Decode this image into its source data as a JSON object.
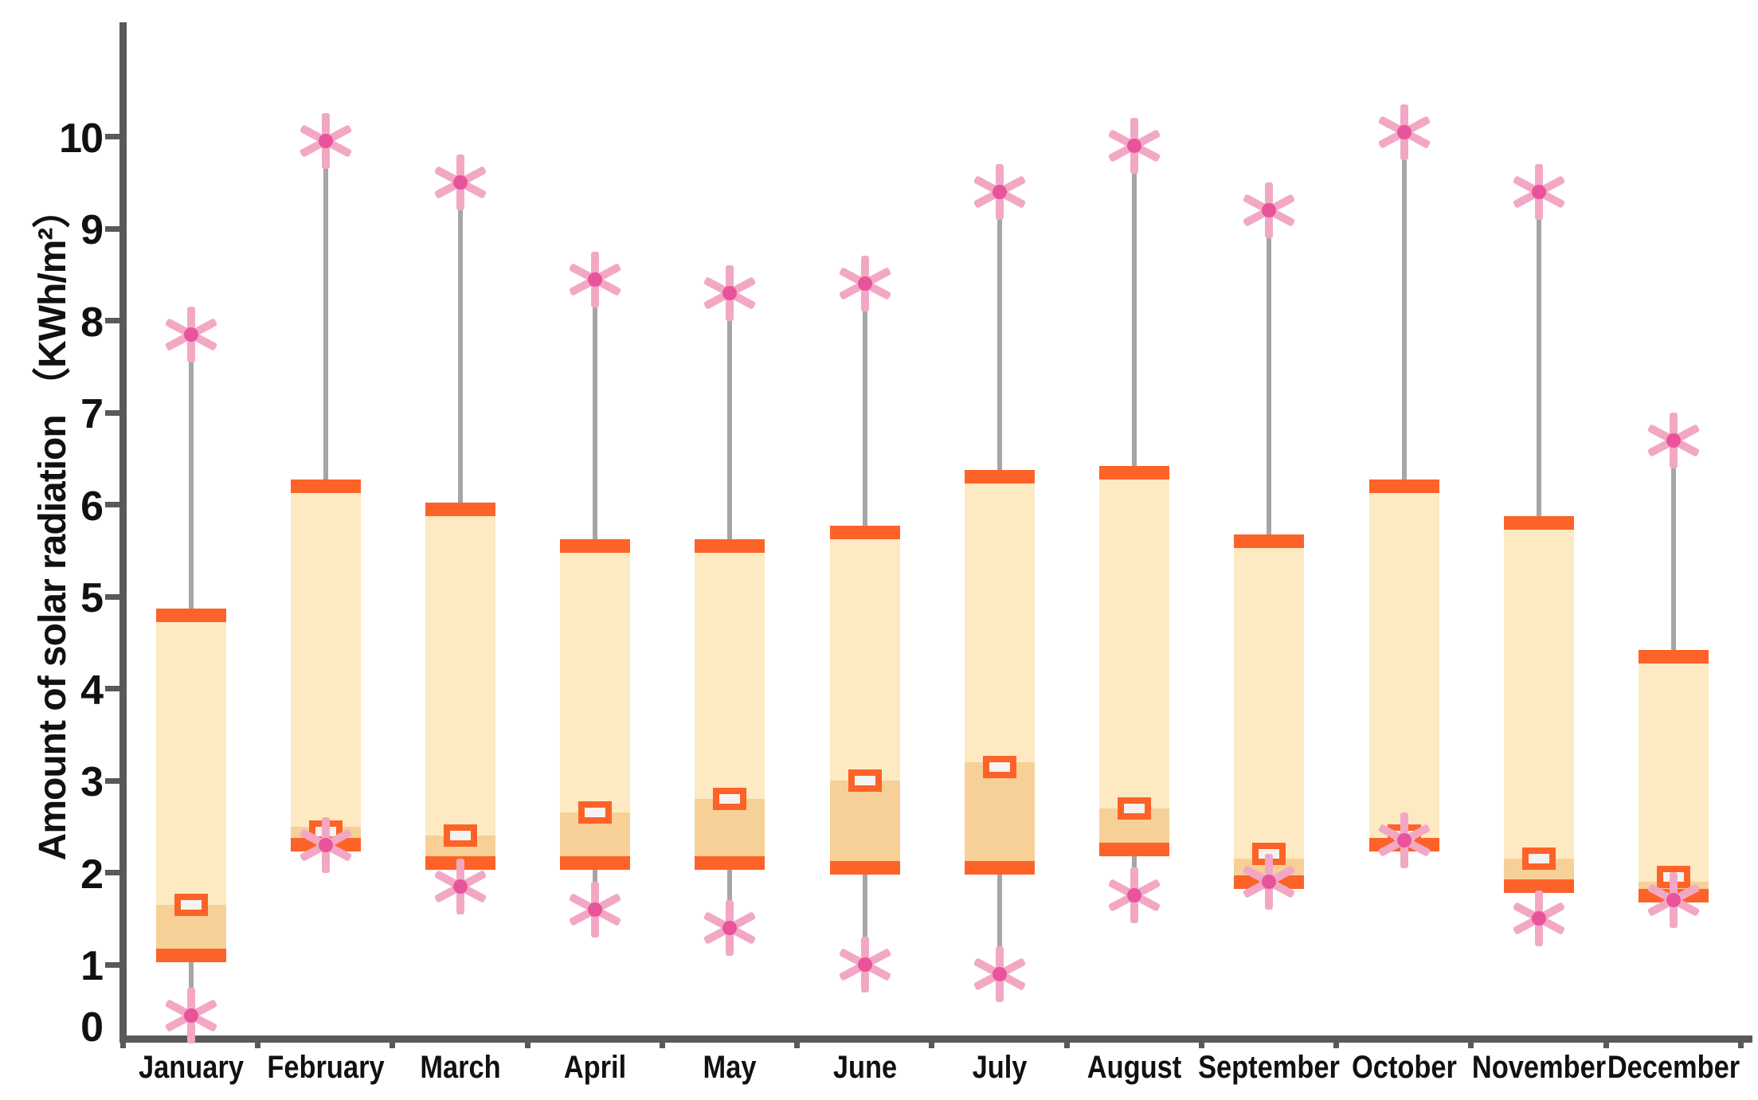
{
  "chart_data": {
    "type": "boxplot",
    "title": "",
    "xlabel": "",
    "ylabel": "Amount of solar radiation （KWh/m²）",
    "ylim": [
      0,
      11.3
    ],
    "yticks": [
      0,
      1,
      2,
      3,
      4,
      5,
      6,
      7,
      8,
      9,
      10
    ],
    "grid": false,
    "legend": "none",
    "categories": [
      "January",
      "February",
      "March",
      "April",
      "May",
      "June",
      "July",
      "August",
      "September",
      "October",
      "November",
      "December"
    ],
    "months": [
      {
        "label": "January",
        "min": 0.45,
        "q1": 1.1,
        "median": 1.65,
        "mean": 1.65,
        "q3": 4.8,
        "max": 7.85
      },
      {
        "label": "February",
        "min": 2.3,
        "q1": 2.3,
        "median": 2.5,
        "mean": 2.45,
        "q3": 6.2,
        "max": 9.95
      },
      {
        "label": "March",
        "min": 1.85,
        "q1": 2.1,
        "median": 2.4,
        "mean": 2.4,
        "q3": 5.95,
        "max": 9.5
      },
      {
        "label": "April",
        "min": 1.6,
        "q1": 2.1,
        "median": 2.65,
        "mean": 2.65,
        "q3": 5.55,
        "max": 8.45
      },
      {
        "label": "May",
        "min": 1.4,
        "q1": 2.1,
        "median": 2.8,
        "mean": 2.8,
        "q3": 5.55,
        "max": 8.3
      },
      {
        "label": "June",
        "min": 1.0,
        "q1": 2.05,
        "median": 3.0,
        "mean": 3.0,
        "q3": 5.7,
        "max": 8.4
      },
      {
        "label": "July",
        "min": 0.9,
        "q1": 2.05,
        "median": 3.2,
        "mean": 3.15,
        "q3": 6.3,
        "max": 9.4
      },
      {
        "label": "August",
        "min": 1.75,
        "q1": 2.25,
        "median": 2.7,
        "mean": 2.7,
        "q3": 6.35,
        "max": 9.9
      },
      {
        "label": "September",
        "min": 1.9,
        "q1": 1.9,
        "median": 2.15,
        "mean": 2.2,
        "q3": 5.6,
        "max": 9.2
      },
      {
        "label": "October",
        "min": 2.35,
        "q1": 2.3,
        "median": 2.35,
        "mean": 2.4,
        "q3": 6.2,
        "max": 10.05
      },
      {
        "label": "November",
        "min": 1.5,
        "q1": 1.85,
        "median": 2.15,
        "mean": 2.15,
        "q3": 5.8,
        "max": 9.4
      },
      {
        "label": "December",
        "min": 1.7,
        "q1": 1.75,
        "median": 1.9,
        "mean": 1.95,
        "q3": 4.35,
        "max": 6.7
      }
    ],
    "marker_semantics": {
      "asterisk": "maximum / minimum value",
      "open_rectangle": "mean value",
      "orange_cap": "upper / lower quartile",
      "dark_band": "lower quartile to median",
      "light_box": "interquartile box"
    }
  },
  "colors": {
    "box_light": "#fdeac3",
    "box_dark_band": "#f6d096",
    "quartile_cap": "#fd6228",
    "mean_marker_border": "#fd6228",
    "mean_marker_fill": "#f4f3f1",
    "whisker": "#a6a6a6",
    "asterisk": "#f2a8c4",
    "asterisk_dot": "#e8539c",
    "axis": "#595959",
    "text": "#111111"
  }
}
